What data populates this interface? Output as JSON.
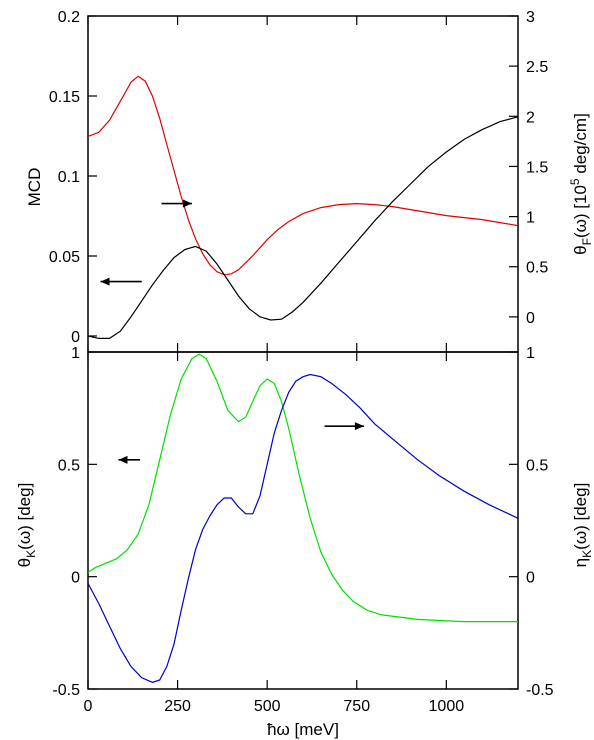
{
  "colors": {
    "red": "#e00000",
    "black": "#000000",
    "green": "#00e000",
    "blue": "#0000cc"
  },
  "xaxis": {
    "label": "ħω [meV]",
    "range": [
      0,
      1200
    ],
    "ticks": [
      0,
      250,
      500,
      750,
      1000
    ],
    "tick_labels": [
      "0",
      "250",
      "500",
      "750",
      "1000"
    ]
  },
  "chart_data": [
    {
      "type": "line",
      "panel": "top",
      "yleft": {
        "label": "MCD",
        "range": [
          -0.01,
          0.2
        ],
        "ticks": [
          0,
          0.05,
          0.1,
          0.15,
          0.2
        ],
        "tick_labels": [
          "0",
          "0.05",
          "0.1",
          "0.15",
          "0.2"
        ]
      },
      "yright": {
        "label_main": "θ",
        "label_sub": "F",
        "label_tail": "(ω) [10",
        "label_sup": "5",
        "label_end": " deg/cm]",
        "range": [
          -0.35,
          3
        ],
        "ticks": [
          0,
          0.5,
          1,
          1.5,
          2,
          2.5,
          3
        ],
        "tick_labels": [
          "0",
          "0.5",
          "1",
          "1.5",
          "2",
          "2.5",
          "3"
        ]
      },
      "series": [
        {
          "axis": "right",
          "color": "red",
          "x": [
            0,
            30,
            60,
            90,
            120,
            140,
            160,
            180,
            200,
            220,
            240,
            260,
            280,
            300,
            320,
            340,
            360,
            380,
            400,
            420,
            440,
            460,
            480,
            500,
            530,
            560,
            600,
            650,
            700,
            750,
            800,
            850,
            900,
            950,
            1000,
            1050,
            1100,
            1150,
            1200
          ],
          "y": [
            1.8,
            1.84,
            1.96,
            2.15,
            2.34,
            2.4,
            2.35,
            2.2,
            1.98,
            1.72,
            1.46,
            1.2,
            0.97,
            0.78,
            0.63,
            0.52,
            0.45,
            0.42,
            0.43,
            0.47,
            0.54,
            0.61,
            0.69,
            0.77,
            0.87,
            0.95,
            1.03,
            1.09,
            1.12,
            1.13,
            1.12,
            1.1,
            1.07,
            1.04,
            1.01,
            0.99,
            0.97,
            0.94,
            0.91
          ]
        },
        {
          "axis": "left",
          "color": "black",
          "x": [
            0,
            30,
            60,
            90,
            120,
            150,
            180,
            210,
            240,
            270,
            300,
            330,
            360,
            390,
            420,
            450,
            480,
            510,
            540,
            570,
            600,
            650,
            700,
            750,
            800,
            850,
            900,
            950,
            1000,
            1050,
            1100,
            1150,
            1200
          ],
          "y": [
            0,
            -0.0015,
            -0.0015,
            0.003,
            0.012,
            0.022,
            0.032,
            0.041,
            0.049,
            0.054,
            0.056,
            0.053,
            0.045,
            0.035,
            0.025,
            0.017,
            0.012,
            0.01,
            0.0105,
            0.015,
            0.021,
            0.033,
            0.046,
            0.059,
            0.072,
            0.084,
            0.095,
            0.106,
            0.115,
            0.123,
            0.129,
            0.134,
            0.137
          ]
        }
      ],
      "arrows": [
        {
          "x1": 150,
          "y1": 0.034,
          "x2": 35,
          "y2": 0.034,
          "axis": "left"
        },
        {
          "x1": 205,
          "y1": 1.13,
          "x2": 290,
          "y2": 1.13,
          "axis": "right"
        }
      ]
    },
    {
      "type": "line",
      "panel": "bottom",
      "yleft": {
        "label_main": "θ",
        "label_sub": "K",
        "label_tail": "(ω) [deg]",
        "range": [
          -0.5,
          1
        ],
        "ticks": [
          -0.5,
          0,
          0.5,
          1
        ],
        "tick_labels": [
          "-0.5",
          "0",
          "0.5",
          "1"
        ]
      },
      "yright": {
        "label_main": "η",
        "label_sub": "K",
        "label_tail": "(ω) [deg]",
        "range": [
          -0.5,
          1
        ],
        "ticks": [
          -0.5,
          0,
          0.5,
          1
        ],
        "tick_labels": [
          "-0.5",
          "0",
          "0.5",
          "1"
        ]
      },
      "series": [
        {
          "axis": "left",
          "color": "green",
          "x": [
            0,
            20,
            50,
            80,
            110,
            140,
            170,
            200,
            230,
            260,
            290,
            310,
            330,
            360,
            390,
            420,
            440,
            460,
            480,
            500,
            520,
            540,
            560,
            590,
            620,
            650,
            680,
            710,
            740,
            780,
            820,
            870,
            920,
            980,
            1050,
            1120,
            1200
          ],
          "y": [
            0.02,
            0.04,
            0.06,
            0.08,
            0.12,
            0.19,
            0.32,
            0.52,
            0.72,
            0.88,
            0.97,
            0.99,
            0.97,
            0.87,
            0.74,
            0.69,
            0.71,
            0.78,
            0.85,
            0.88,
            0.86,
            0.78,
            0.66,
            0.45,
            0.26,
            0.11,
            0.01,
            -0.06,
            -0.11,
            -0.15,
            -0.17,
            -0.18,
            -0.19,
            -0.195,
            -0.2,
            -0.2,
            -0.2
          ]
        },
        {
          "axis": "right",
          "color": "blue",
          "x": [
            0,
            30,
            60,
            90,
            120,
            150,
            180,
            200,
            220,
            240,
            260,
            280,
            300,
            320,
            340,
            360,
            380,
            400,
            420,
            440,
            460,
            480,
            500,
            520,
            540,
            560,
            580,
            600,
            620,
            650,
            680,
            720,
            760,
            800,
            860,
            920,
            980,
            1050,
            1120,
            1200
          ],
          "y": [
            -0.03,
            -0.12,
            -0.22,
            -0.32,
            -0.4,
            -0.45,
            -0.47,
            -0.46,
            -0.4,
            -0.3,
            -0.15,
            -0.01,
            0.12,
            0.21,
            0.27,
            0.32,
            0.35,
            0.35,
            0.31,
            0.28,
            0.28,
            0.36,
            0.5,
            0.64,
            0.74,
            0.82,
            0.87,
            0.89,
            0.9,
            0.89,
            0.86,
            0.81,
            0.75,
            0.68,
            0.6,
            0.52,
            0.45,
            0.38,
            0.32,
            0.26
          ]
        }
      ],
      "arrows": [
        {
          "x1": 660,
          "y1": 0.67,
          "x2": 770,
          "y2": 0.67,
          "axis": "right"
        },
        {
          "x1": 145,
          "y1": 0.52,
          "x2": 85,
          "y2": 0.52,
          "axis": "left"
        }
      ]
    }
  ]
}
